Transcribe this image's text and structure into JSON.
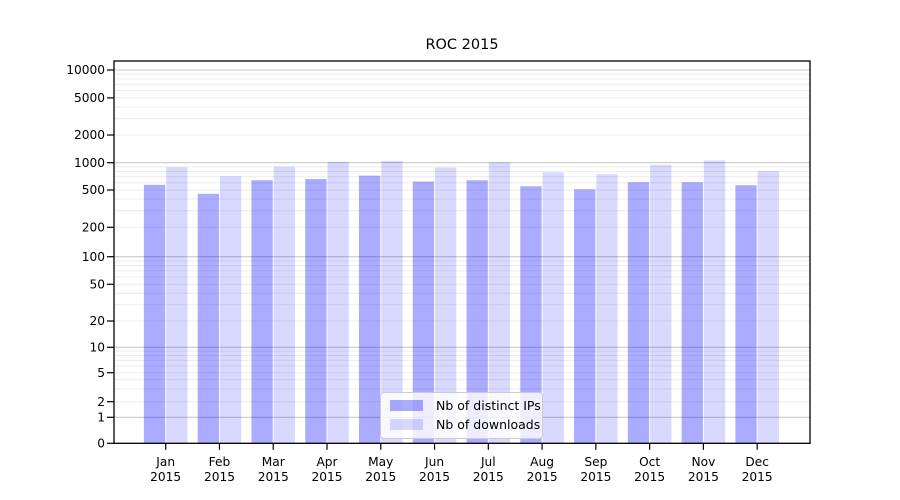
{
  "title": "ROC 2015",
  "chart_data": {
    "type": "bar",
    "title": "ROC 2015",
    "x_tick_second_line": "2015",
    "categories": [
      "Jan",
      "Feb",
      "Mar",
      "Apr",
      "May",
      "Jun",
      "Jul",
      "Aug",
      "Sep",
      "Oct",
      "Nov",
      "Dec"
    ],
    "yscale": "symlog",
    "yticks": [
      0,
      1,
      2,
      5,
      10,
      20,
      50,
      100,
      200,
      500,
      1000,
      2000,
      5000,
      10000
    ],
    "ylim": [
      0,
      12500
    ],
    "grid": "horizontal, minor light + major darker at powers of 10",
    "legend_position": "bottom-center",
    "colors": {
      "bar_distinct_ips": "#ababff",
      "bar_downloads": "#d9d9ff",
      "grid_major": "#c9c9c9",
      "grid_minor": "#ececec",
      "frame": "#000000"
    },
    "series": [
      {
        "name": "Nb of distinct IPs",
        "fill": "rgba(0,0,255,0.33)",
        "values": [
          570,
          455,
          640,
          660,
          720,
          620,
          640,
          550,
          510,
          610,
          610,
          565
        ]
      },
      {
        "name": "Nb of downloads",
        "fill": "rgba(0,0,255,0.15)",
        "values": [
          890,
          710,
          905,
          1025,
          1045,
          885,
          1010,
          785,
          745,
          945,
          1060,
          810
        ]
      }
    ]
  }
}
